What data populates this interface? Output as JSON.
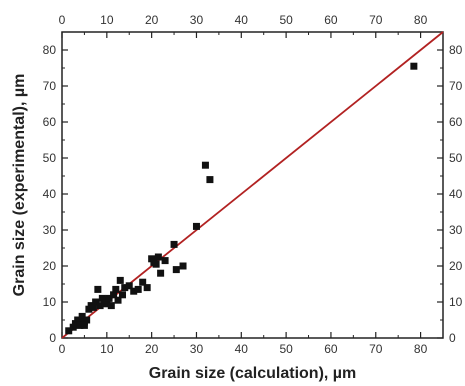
{
  "chart_data": {
    "type": "scatter",
    "xlabel": "Grain size (calculation), µm",
    "ylabel": "Grain size (experimental), µm",
    "xlim": [
      0,
      85
    ],
    "ylim": [
      0,
      85
    ],
    "x_ticks": [
      0,
      10,
      20,
      30,
      40,
      50,
      60,
      70,
      80
    ],
    "y_ticks": [
      0,
      10,
      20,
      30,
      40,
      50,
      60,
      70,
      80
    ],
    "top_axis_mirrored": true,
    "right_axis_mirrored": true,
    "grid": false,
    "reference_line": {
      "from": [
        0,
        0
      ],
      "to": [
        85,
        85
      ],
      "color": "#b22222"
    },
    "marker_color": "#111111",
    "series": [
      {
        "x": [
          1.5,
          2.5,
          3,
          3.5,
          4,
          4.5,
          5,
          5.5,
          5,
          6,
          6.5,
          7,
          7.5,
          8,
          8.5,
          9,
          9.5,
          10,
          10.5,
          11,
          11.5,
          12,
          12.5,
          13,
          13.5,
          14,
          15,
          16,
          17,
          18,
          19,
          20,
          20.5,
          21,
          21.5,
          22,
          23,
          25,
          25.5,
          27,
          30,
          32,
          33,
          78.5
        ],
        "y": [
          2,
          3,
          4,
          5,
          3.5,
          6,
          4.5,
          5,
          3.5,
          8,
          9,
          8.5,
          10,
          13.5,
          9,
          11,
          9.5,
          10.5,
          11,
          9,
          12,
          13.5,
          10.5,
          16,
          12,
          14,
          14.5,
          13,
          13.5,
          15.5,
          14,
          22,
          21,
          20.5,
          22.5,
          18,
          21.5,
          26,
          19,
          20,
          31,
          48,
          44,
          75.5
        ]
      }
    ]
  }
}
